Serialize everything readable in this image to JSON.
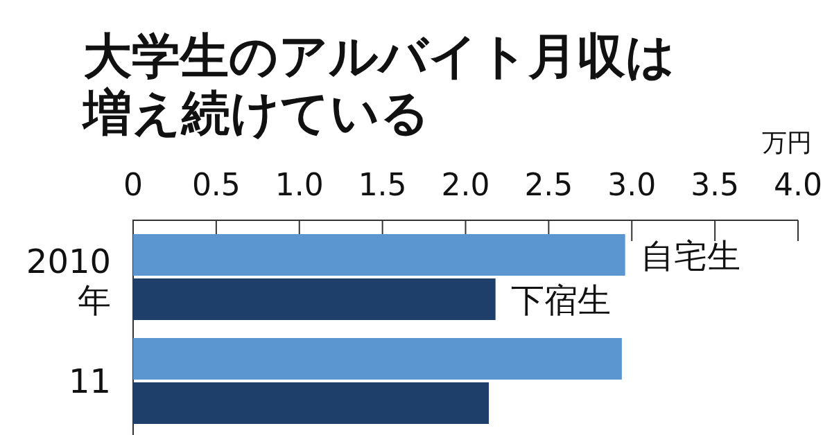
{
  "chart_data": {
    "type": "bar",
    "orientation": "horizontal",
    "title": "大学生のアルバイト月収は増え続けている",
    "xlabel": "万円",
    "categories": [
      "2010年",
      "11"
    ],
    "series": [
      {
        "name": "自宅生",
        "color": "#5b96d0",
        "values": [
          2.96,
          2.94
        ]
      },
      {
        "name": "下宿生",
        "color": "#1d3f69",
        "values": [
          2.18,
          2.14
        ]
      }
    ],
    "xlim": [
      0,
      4
    ],
    "xticks": [
      0,
      0.5,
      {
        "value": 1,
        "label": "1.0"
      },
      1.5,
      {
        "value": 2,
        "label": "2.0"
      },
      2.5,
      {
        "value": 3,
        "label": "3.0"
      },
      3.5,
      {
        "value": 4,
        "label": "4.0"
      }
    ],
    "grid": false,
    "legend": false
  }
}
